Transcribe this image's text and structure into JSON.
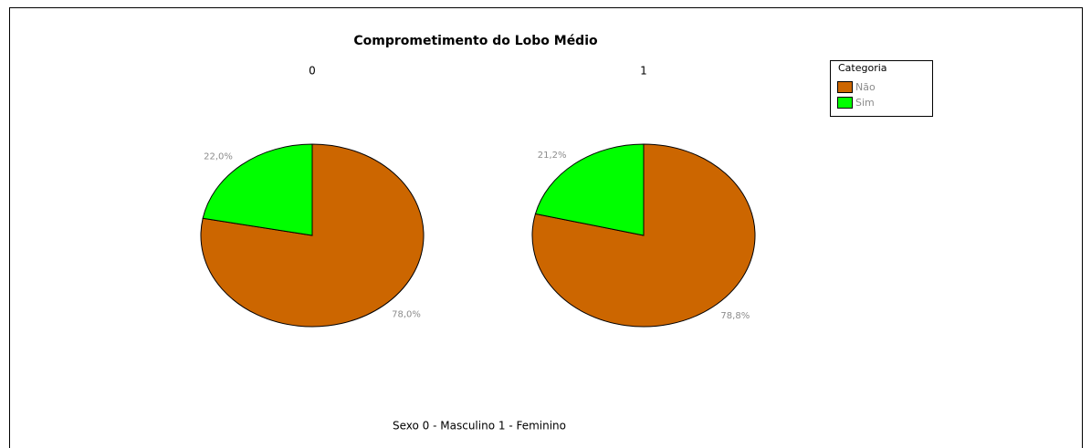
{
  "title": "Comprometimento do Lobo Médio",
  "legend_title": "Categoria",
  "caption": "Sexo 0 - Masculino  1 - Feminino",
  "chart_data": [
    {
      "type": "pie",
      "title": "0",
      "categories": [
        "Não",
        "Sim"
      ],
      "values": [
        78.0,
        22.0
      ],
      "value_labels": [
        "78,0%",
        "22,0%"
      ],
      "colors": [
        "#cc6600",
        "#00ff00"
      ]
    },
    {
      "type": "pie",
      "title": "1",
      "categories": [
        "Não",
        "Sim"
      ],
      "values": [
        78.8,
        21.2
      ],
      "value_labels": [
        "78,8%",
        "21,2%"
      ],
      "colors": [
        "#cc6600",
        "#00ff00"
      ]
    }
  ]
}
